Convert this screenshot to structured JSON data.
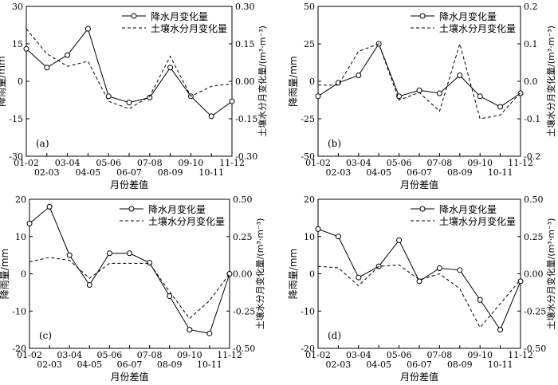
{
  "x_title": "月份差值",
  "left_axis_title": "降雨量/mm",
  "right_axis_title": "土壤水分月变化量/(m³·m⁻³)",
  "legend": {
    "precip": "降水月变化量",
    "soil": "土壤水分月变化量"
  },
  "colors": {
    "line": "#000000",
    "background": "#ffffff"
  },
  "chart_data": [
    {
      "type": "line",
      "panel_label": "(a)",
      "categories": [
        "01-02",
        "02-03",
        "03-04",
        "04-05",
        "05-06",
        "06-07",
        "07-08",
        "08-09",
        "09-10",
        "10-11",
        "11-12"
      ],
      "xlabel": "月份差值",
      "ylabel": "降雨量/mm",
      "y2label": "土壤水分月变化量/(m³·m⁻³)",
      "ylim": [
        -30,
        30
      ],
      "yticks": [
        -30,
        -15,
        0,
        15,
        30
      ],
      "y2lim": [
        -0.3,
        0.3
      ],
      "y2ticks": [
        "-0.30",
        "-0.15",
        "0.00",
        "0.15",
        "0.30"
      ],
      "legend_position": "top-right",
      "series": [
        {
          "name": "降水月变化量",
          "axis": "left",
          "marker": "circle",
          "dash": "solid",
          "values": [
            13,
            5.5,
            10.5,
            21,
            -6,
            -8.5,
            -6.5,
            5.5,
            -6,
            -14,
            -8
          ]
        },
        {
          "name": "土壤水分月变化量",
          "axis": "right",
          "marker": "none",
          "dash": "dashed",
          "values": [
            0.21,
            0.11,
            0.06,
            0.08,
            -0.08,
            -0.11,
            -0.06,
            0.1,
            -0.06,
            -0.02,
            -0.01
          ]
        }
      ]
    },
    {
      "type": "line",
      "panel_label": "(b)",
      "categories": [
        "01-02",
        "02-03",
        "03-04",
        "04-05",
        "05-06",
        "06-07",
        "07-08",
        "08-09",
        "09-10",
        "10-11",
        "11-12"
      ],
      "xlabel": "月份差值",
      "ylabel": "降雨量/mm",
      "y2label": "土壤水分月变化量/(m³·m⁻³)",
      "ylim": [
        -50,
        50
      ],
      "yticks": [
        -50,
        -25,
        0,
        25,
        50
      ],
      "y2lim": [
        -0.2,
        0.2
      ],
      "y2ticks": [
        "-0.2",
        "-0.1",
        "0.0",
        "0.1",
        "0.2"
      ],
      "legend_position": "top-right",
      "series": [
        {
          "name": "降水月变化量",
          "axis": "left",
          "marker": "circle",
          "dash": "solid",
          "values": [
            -10,
            -1,
            4,
            25,
            -10,
            -6,
            -8,
            4,
            -10,
            -17,
            -8
          ]
        },
        {
          "name": "土壤水分月变化量",
          "axis": "right",
          "marker": "none",
          "dash": "dashed",
          "values": [
            -0.01,
            -0.01,
            0.08,
            0.1,
            -0.05,
            -0.03,
            -0.08,
            0.1,
            -0.1,
            -0.09,
            -0.03
          ]
        }
      ]
    },
    {
      "type": "line",
      "panel_label": "(c)",
      "categories": [
        "01-02",
        "02-03",
        "03-04",
        "04-05",
        "05-06",
        "06-07",
        "07-08",
        "08-09",
        "09-10",
        "10-11",
        "11-12"
      ],
      "xlabel": "月份差值",
      "ylabel": "降雨量/mm",
      "y2label": "土壤水分月变化量/(m³·m⁻³)",
      "ylim": [
        -20,
        20
      ],
      "yticks": [
        -20,
        -10,
        0,
        10,
        20
      ],
      "y2lim": [
        -0.5,
        0.5
      ],
      "y2ticks": [
        "-0.50",
        "-0.25",
        "0.00",
        "0.25",
        "0.50"
      ],
      "legend_position": "top-right",
      "series": [
        {
          "name": "降水月变化量",
          "axis": "left",
          "marker": "circle",
          "dash": "solid",
          "values": [
            13.5,
            18,
            5,
            -3,
            5.5,
            5.5,
            3,
            -6,
            -15,
            -16,
            0
          ]
        },
        {
          "name": "土壤水分月变化量",
          "axis": "right",
          "marker": "none",
          "dash": "dashed",
          "values": [
            0.08,
            0.11,
            0.09,
            -0.03,
            0.07,
            0.07,
            0.07,
            -0.12,
            -0.3,
            -0.18,
            0.0
          ]
        }
      ]
    },
    {
      "type": "line",
      "panel_label": "(d)",
      "categories": [
        "01-02",
        "02-03",
        "03-04",
        "04-05",
        "05-06",
        "06-07",
        "07-08",
        "08-09",
        "09-10",
        "10-11",
        "11-12"
      ],
      "xlabel": "月份差值",
      "ylabel": "降雨量/mm",
      "y2label": "土壤水分月变化量/(m³·m⁻³)",
      "ylim": [
        -20,
        20
      ],
      "yticks": [
        -20,
        -10,
        0,
        10,
        20
      ],
      "y2lim": [
        -0.5,
        0.5
      ],
      "y2ticks": [
        "-0.50",
        "-0.25",
        "0.00",
        "0.25",
        "0.50"
      ],
      "legend_position": "top-right",
      "series": [
        {
          "name": "降水月变化量",
          "axis": "left",
          "marker": "circle",
          "dash": "solid",
          "values": [
            12,
            10,
            -1,
            2,
            9,
            -2,
            1.5,
            1,
            -7,
            -15,
            -2
          ]
        },
        {
          "name": "土壤水分月变化量",
          "axis": "right",
          "marker": "none",
          "dash": "dashed",
          "values": [
            0.05,
            0.04,
            -0.08,
            0.05,
            0.06,
            -0.04,
            0.0,
            -0.1,
            -0.36,
            -0.2,
            -0.04
          ]
        }
      ]
    }
  ]
}
